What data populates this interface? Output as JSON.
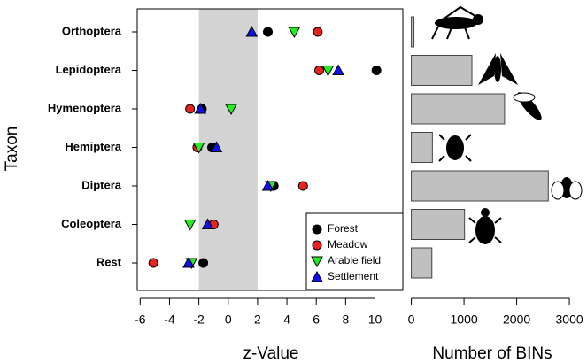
{
  "chart_data": [
    {
      "type": "dot",
      "x_label": "z-Value",
      "y_label": "Taxon",
      "categories": [
        "Orthoptera",
        "Lepidoptera",
        "Hymenoptera",
        "Hemiptera",
        "Diptera",
        "Coleoptera",
        "Rest"
      ],
      "series": [
        {
          "name": "Forest",
          "color": "#000000",
          "marker": "circle",
          "values": [
            2.7,
            10.1,
            -1.8,
            -1.1,
            3.1,
            -1.0,
            -1.7
          ]
        },
        {
          "name": "Meadow",
          "color": "#e8221c",
          "marker": "circle",
          "values": [
            6.1,
            6.2,
            -2.6,
            -2.1,
            5.1,
            -1.0,
            -5.1
          ]
        },
        {
          "name": "Arable field",
          "color": "#22ee22",
          "marker": "triangle-down",
          "values": [
            4.5,
            6.8,
            0.2,
            -2.0,
            2.9,
            -2.6,
            -2.5
          ]
        },
        {
          "name": "Settlement",
          "color": "#1010ee",
          "marker": "triangle-up",
          "values": [
            1.6,
            7.5,
            -1.9,
            -0.8,
            2.7,
            -1.4,
            -2.7
          ]
        }
      ],
      "band": [
        -2,
        2
      ],
      "band_color": "#d3d3d3",
      "xlim": [
        -6.2,
        11.9
      ],
      "xticks": [
        -6,
        -4,
        -2,
        0,
        2,
        4,
        6,
        8,
        10
      ],
      "legend": "bottom-right"
    },
    {
      "type": "hbar",
      "x_label": "Number of BINs",
      "color": "#c0c0c0",
      "values": [
        50,
        1150,
        1770,
        400,
        2600,
        1010,
        390
      ],
      "xlim": [
        -60,
        3200
      ],
      "xticks": [
        0,
        1000,
        2000,
        3000
      ]
    }
  ]
}
